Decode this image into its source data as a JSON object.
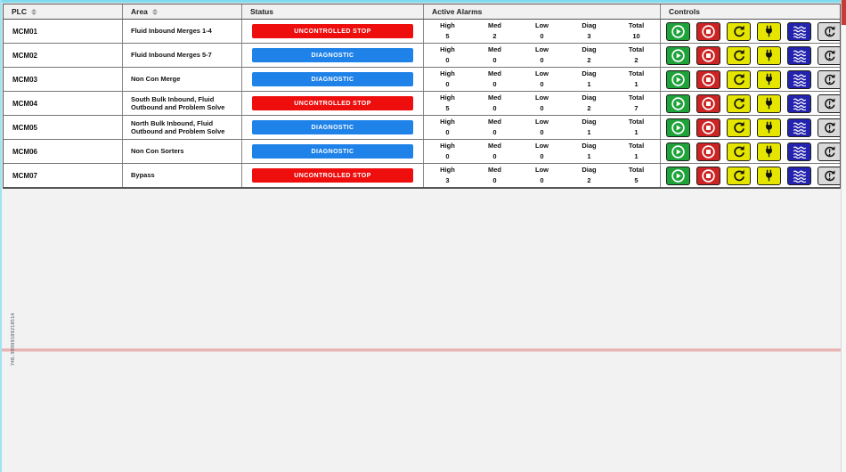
{
  "table": {
    "columns": [
      {
        "id": "plc",
        "label": "PLC",
        "sortable": true
      },
      {
        "id": "area",
        "label": "Area",
        "sortable": true
      },
      {
        "id": "status",
        "label": "Status",
        "sortable": false
      },
      {
        "id": "alarms",
        "label": "Active Alarms",
        "sortable": false
      },
      {
        "id": "controls",
        "label": "Controls",
        "sortable": false
      }
    ],
    "alarm_subcolumns": [
      "High",
      "Med",
      "Low",
      "Diag",
      "Total"
    ],
    "rows": [
      {
        "plc": "MCM01",
        "area": "Fluid Inbound Merges 1-4",
        "status": "UNCONTROLLED STOP",
        "status_type": "stop",
        "alarms": [
          5,
          2,
          0,
          3,
          10
        ]
      },
      {
        "plc": "MCM02",
        "area": "Fluid Inbound Merges 5-7",
        "status": "DIAGNOSTIC",
        "status_type": "diag",
        "alarms": [
          0,
          0,
          0,
          2,
          2
        ]
      },
      {
        "plc": "MCM03",
        "area": "Non Con Merge",
        "status": "DIAGNOSTIC",
        "status_type": "diag",
        "alarms": [
          0,
          0,
          0,
          1,
          1
        ]
      },
      {
        "plc": "MCM04",
        "area": "South Bulk Inbound, Fluid Outbound and Problem Solve",
        "status": "UNCONTROLLED STOP",
        "status_type": "stop",
        "alarms": [
          5,
          0,
          0,
          2,
          7
        ]
      },
      {
        "plc": "MCM05",
        "area": "North Bulk Inbound, Fluid Outbound and Problem Solve",
        "status": "DIAGNOSTIC",
        "status_type": "diag",
        "alarms": [
          0,
          0,
          0,
          1,
          1
        ]
      },
      {
        "plc": "MCM06",
        "area": "Non Con Sorters",
        "status": "DIAGNOSTIC",
        "status_type": "diag",
        "alarms": [
          0,
          0,
          0,
          1,
          1
        ]
      },
      {
        "plc": "MCM07",
        "area": "Bypass",
        "status": "UNCONTROLLED STOP",
        "status_type": "stop",
        "alarms": [
          3,
          0,
          0,
          2,
          5
        ]
      }
    ]
  },
  "controls_buttons": [
    {
      "name": "start",
      "icon": "play-icon",
      "bg": "#1ea23a"
    },
    {
      "name": "stop",
      "icon": "stop-icon",
      "bg": "#cc2424"
    },
    {
      "name": "restart",
      "icon": "refresh-icon",
      "bg": "#e5e500"
    },
    {
      "name": "power",
      "icon": "plug-icon",
      "bg": "#e5e500"
    },
    {
      "name": "flow",
      "icon": "waves-icon",
      "bg": "#2323ad"
    },
    {
      "name": "fault-reset",
      "icon": "alarm-reset-icon",
      "bg": "#d9d9d9"
    }
  ],
  "overlay": {
    "vertical_text": "748.99999109218514"
  },
  "colors": {
    "frame_accent": "#7fdbee",
    "status_stop": "#ee0e0e",
    "status_diagnostic": "#1e82e8",
    "scroll_marker_red": "#c63b35",
    "measure_line_pink": "#e2a9a9"
  }
}
